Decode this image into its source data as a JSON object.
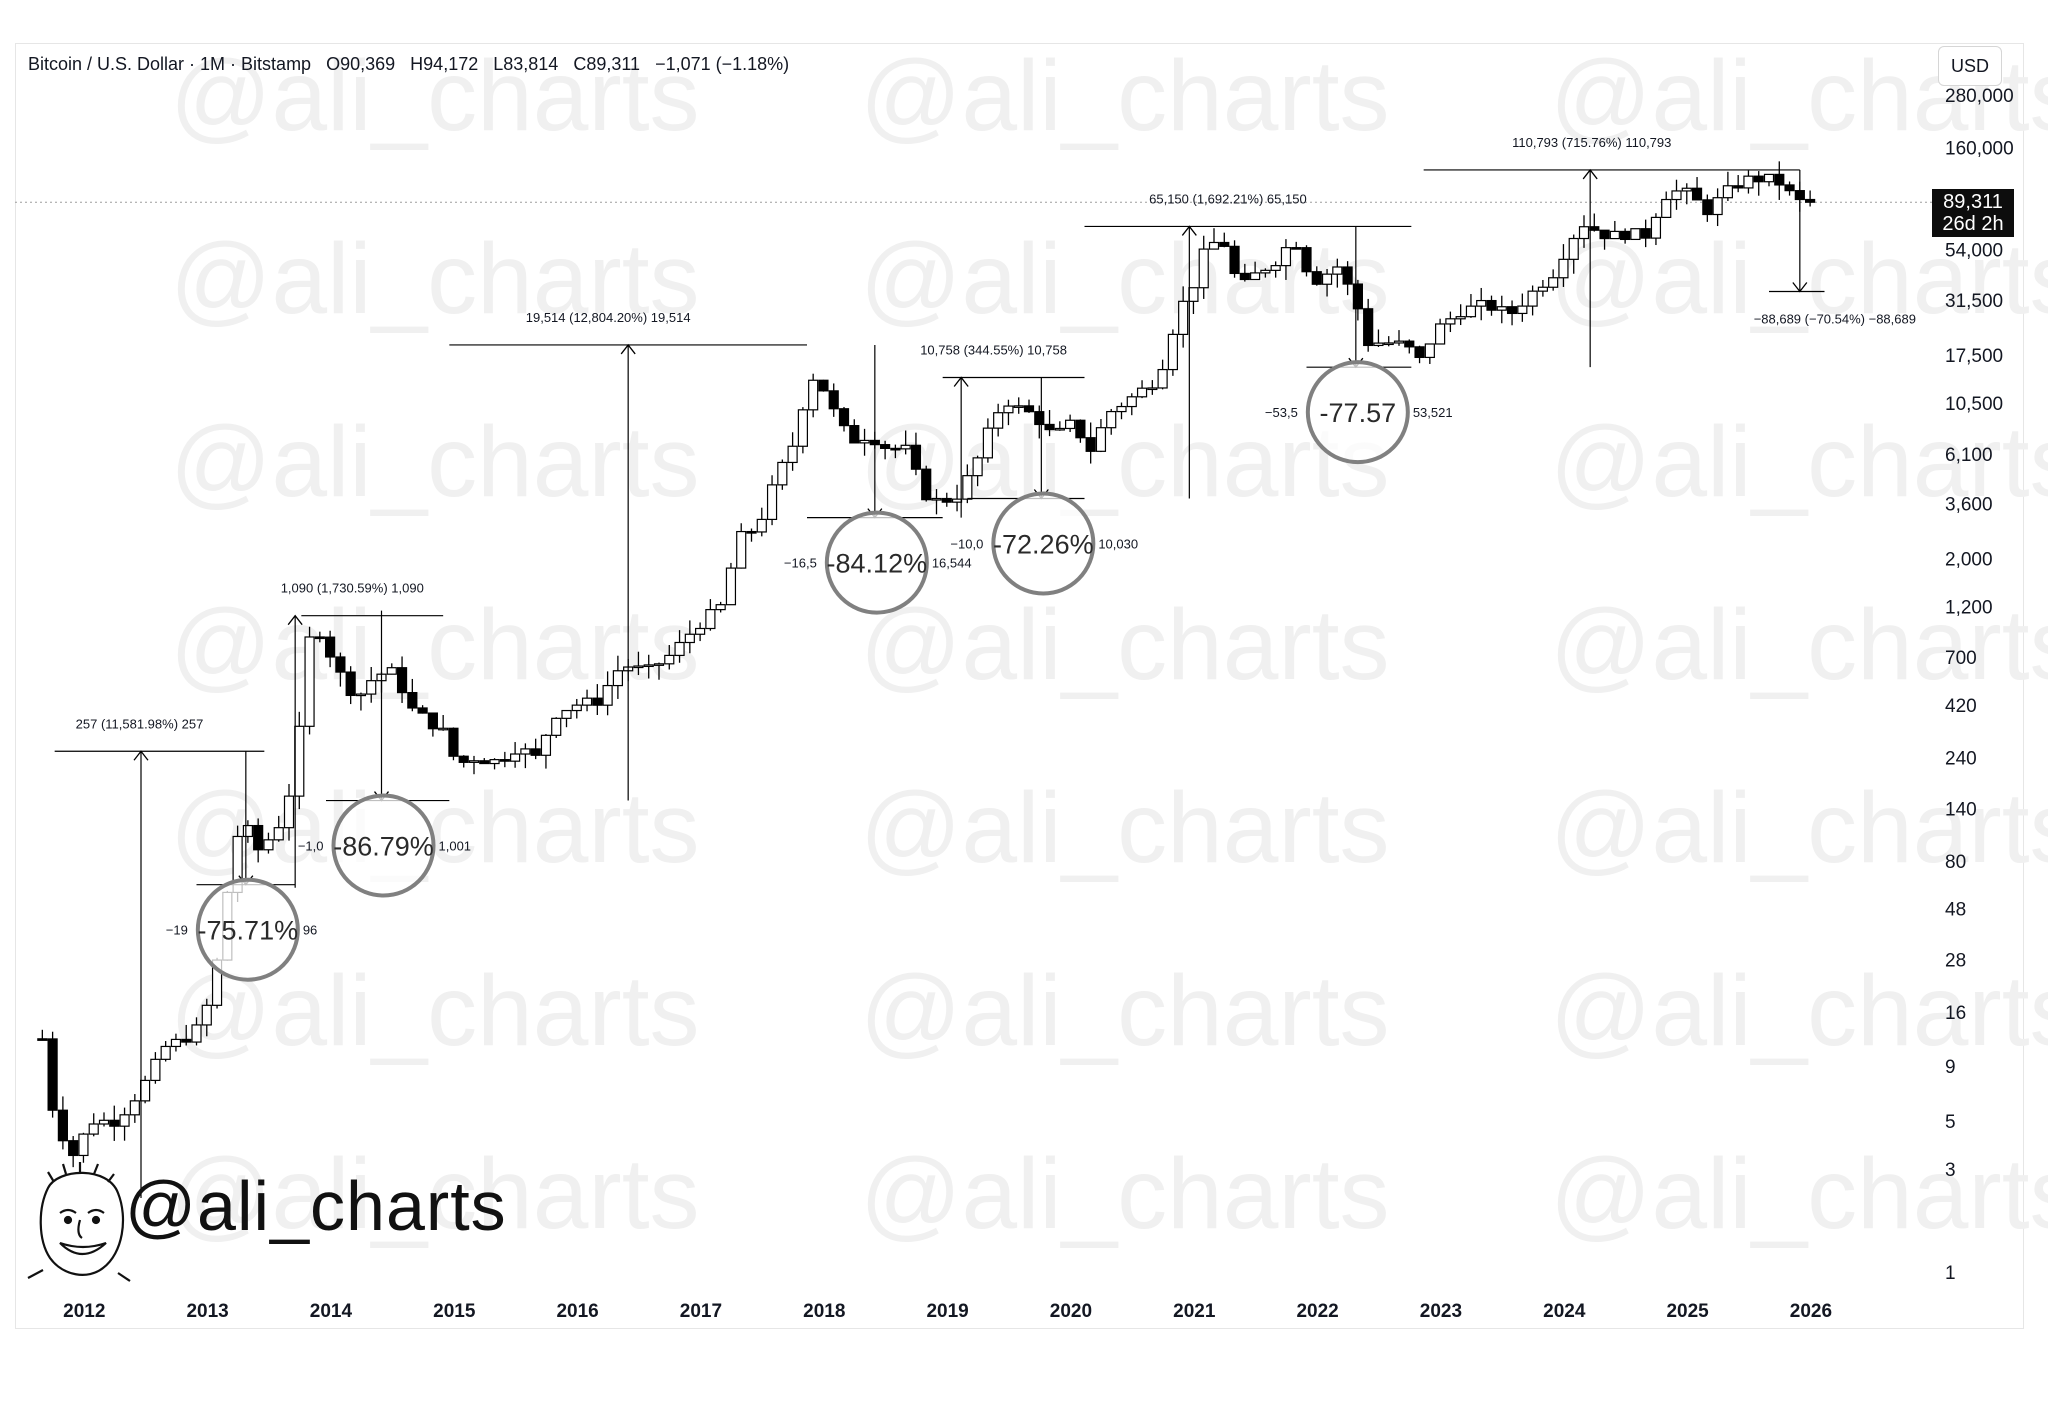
{
  "header": {
    "symbol": "Bitcoin / U.S. Dollar · 1M · Bitstamp",
    "open": "O90,369",
    "high": "H94,172",
    "low": "L83,814",
    "close": "C89,311",
    "change": "−1,071 (−1.18%)"
  },
  "currency": "USD",
  "price_badge": {
    "price": "89,311",
    "countdown": "26d 2h"
  },
  "watermark_text": "@ali_charts",
  "brand_text": "@ali_charts",
  "colors": {
    "up_candle": "#ffffff",
    "down_candle": "#000000",
    "wick": "#000000",
    "measure_line": "#000000",
    "circle": "#808080"
  },
  "chart_data": {
    "type": "candlestick",
    "y_scale": "log",
    "ylim": [
      1,
      280000
    ],
    "xlim": [
      2011.6,
      2026.6
    ],
    "y_tick_labels": [
      "280,000",
      "160,000",
      "54,000",
      "31,500",
      "17,500",
      "10,500",
      "6,100",
      "3,600",
      "2,000",
      "1,200",
      "700",
      "420",
      "240",
      "140",
      "80",
      "48",
      "28",
      "16",
      "9",
      "5",
      "3",
      "1"
    ],
    "x_tick_labels": [
      "2012",
      "2013",
      "2014",
      "2015",
      "2016",
      "2017",
      "2018",
      "2019",
      "2020",
      "2021",
      "2022",
      "2023",
      "2024",
      "2025",
      "2026"
    ],
    "current_price": 89311,
    "anchors": [
      {
        "t": 2011.7,
        "p": 12
      },
      {
        "t": 2011.8,
        "p": 5
      },
      {
        "t": 2011.95,
        "p": 3.5
      },
      {
        "t": 2012.1,
        "p": 5
      },
      {
        "t": 2012.3,
        "p": 5
      },
      {
        "t": 2012.5,
        "p": 7
      },
      {
        "t": 2012.7,
        "p": 11
      },
      {
        "t": 2012.85,
        "p": 12
      },
      {
        "t": 2013.0,
        "p": 14
      },
      {
        "t": 2013.15,
        "p": 33
      },
      {
        "t": 2013.25,
        "p": 100
      },
      {
        "t": 2013.35,
        "p": 115
      },
      {
        "t": 2013.45,
        "p": 90
      },
      {
        "t": 2013.6,
        "p": 110
      },
      {
        "t": 2013.75,
        "p": 200
      },
      {
        "t": 2013.85,
        "p": 800
      },
      {
        "t": 2013.92,
        "p": 1000
      },
      {
        "t": 2014.0,
        "p": 800
      },
      {
        "t": 2014.1,
        "p": 600
      },
      {
        "t": 2014.25,
        "p": 450
      },
      {
        "t": 2014.4,
        "p": 580
      },
      {
        "t": 2014.55,
        "p": 600
      },
      {
        "t": 2014.7,
        "p": 400
      },
      {
        "t": 2014.85,
        "p": 350
      },
      {
        "t": 2015.0,
        "p": 300
      },
      {
        "t": 2015.05,
        "p": 220
      },
      {
        "t": 2015.2,
        "p": 240
      },
      {
        "t": 2015.4,
        "p": 230
      },
      {
        "t": 2015.55,
        "p": 270
      },
      {
        "t": 2015.7,
        "p": 240
      },
      {
        "t": 2015.85,
        "p": 380
      },
      {
        "t": 2016.0,
        "p": 420
      },
      {
        "t": 2016.2,
        "p": 440
      },
      {
        "t": 2016.4,
        "p": 650
      },
      {
        "t": 2016.6,
        "p": 600
      },
      {
        "t": 2016.8,
        "p": 720
      },
      {
        "t": 2017.0,
        "p": 970
      },
      {
        "t": 2017.2,
        "p": 1200
      },
      {
        "t": 2017.35,
        "p": 2500
      },
      {
        "t": 2017.5,
        "p": 2800
      },
      {
        "t": 2017.65,
        "p": 4700
      },
      {
        "t": 2017.8,
        "p": 7000
      },
      {
        "t": 2017.92,
        "p": 14000
      },
      {
        "t": 2018.0,
        "p": 13500
      },
      {
        "t": 2018.1,
        "p": 10000
      },
      {
        "t": 2018.25,
        "p": 7000
      },
      {
        "t": 2018.4,
        "p": 7500
      },
      {
        "t": 2018.55,
        "p": 6500
      },
      {
        "t": 2018.7,
        "p": 6400
      },
      {
        "t": 2018.85,
        "p": 4000
      },
      {
        "t": 2018.95,
        "p": 3700
      },
      {
        "t": 2019.1,
        "p": 3800
      },
      {
        "t": 2019.25,
        "p": 5200
      },
      {
        "t": 2019.4,
        "p": 8500
      },
      {
        "t": 2019.5,
        "p": 11000
      },
      {
        "t": 2019.6,
        "p": 10000
      },
      {
        "t": 2019.75,
        "p": 9200
      },
      {
        "t": 2019.9,
        "p": 7300
      },
      {
        "t": 2020.05,
        "p": 8500
      },
      {
        "t": 2020.2,
        "p": 6400
      },
      {
        "t": 2020.35,
        "p": 9500
      },
      {
        "t": 2020.55,
        "p": 11300
      },
      {
        "t": 2020.75,
        "p": 13800
      },
      {
        "t": 2020.92,
        "p": 29000
      },
      {
        "t": 2021.0,
        "p": 33000
      },
      {
        "t": 2021.15,
        "p": 58000
      },
      {
        "t": 2021.3,
        "p": 57000
      },
      {
        "t": 2021.4,
        "p": 35000
      },
      {
        "t": 2021.55,
        "p": 42000
      },
      {
        "t": 2021.7,
        "p": 48000
      },
      {
        "t": 2021.85,
        "p": 61000
      },
      {
        "t": 2022.0,
        "p": 38000
      },
      {
        "t": 2022.2,
        "p": 45000
      },
      {
        "t": 2022.35,
        "p": 31000
      },
      {
        "t": 2022.45,
        "p": 20000
      },
      {
        "t": 2022.6,
        "p": 20000
      },
      {
        "t": 2022.75,
        "p": 19500
      },
      {
        "t": 2022.87,
        "p": 16500
      },
      {
        "t": 2023.0,
        "p": 23000
      },
      {
        "t": 2023.2,
        "p": 28000
      },
      {
        "t": 2023.4,
        "p": 30000
      },
      {
        "t": 2023.6,
        "p": 27000
      },
      {
        "t": 2023.8,
        "p": 35000
      },
      {
        "t": 2023.95,
        "p": 42000
      },
      {
        "t": 2024.1,
        "p": 61000
      },
      {
        "t": 2024.2,
        "p": 71000
      },
      {
        "t": 2024.4,
        "p": 62000
      },
      {
        "t": 2024.55,
        "p": 64000
      },
      {
        "t": 2024.7,
        "p": 63000
      },
      {
        "t": 2024.85,
        "p": 96000
      },
      {
        "t": 2025.0,
        "p": 102000
      },
      {
        "t": 2025.2,
        "p": 82000
      },
      {
        "t": 2025.4,
        "p": 105000
      },
      {
        "t": 2025.55,
        "p": 115000
      },
      {
        "t": 2025.7,
        "p": 114000
      },
      {
        "t": 2025.8,
        "p": 109000
      },
      {
        "t": 2025.92,
        "p": 90000
      },
      {
        "t": 2026.0,
        "p": 89311
      }
    ],
    "measurements": [
      {
        "label": "257 (11,581.98%) 257",
        "from_t": 2011.95,
        "from_p": 2.2,
        "to_p": 257,
        "arrow_t": 2012.5,
        "x0": 2011.8,
        "x1": 2013.5
      },
      {
        "label": "1,090 (1,730.59%) 1,090",
        "from_t": 2013.75,
        "from_p": 60,
        "to_p": 1090,
        "arrow_t": 2013.75,
        "x0": 2013.8,
        "x1": 2014.95
      },
      {
        "label": "19,514 (12,804.20%) 19,514",
        "from_t": 2015.0,
        "from_p": 152,
        "to_p": 19514,
        "arrow_t": 2016.45,
        "x0": 2015.0,
        "x1": 2017.9
      },
      {
        "label": "10,758 (344.55%) 10,758",
        "from_t": 2018.95,
        "from_p": 3100,
        "to_p": 13800,
        "arrow_t": 2019.15,
        "x0": 2019.0,
        "x1": 2020.15
      },
      {
        "label": "65,150 (1,692.21%) 65,150",
        "from_t": 2020.15,
        "from_p": 3800,
        "to_p": 69000,
        "arrow_t": 2021.0,
        "x0": 2020.15,
        "x1": 2022.8
      },
      {
        "label": "110,793 (715.76%) 110,793",
        "from_t": 2022.9,
        "from_p": 15400,
        "to_p": 126000,
        "arrow_t": 2024.25,
        "x0": 2022.9,
        "x1": 2025.95
      }
    ],
    "drawdowns": [
      {
        "label_left": "−19",
        "label_right": "96",
        "circle_text": "-75.71%",
        "top_p": 257,
        "bottom_p": 62,
        "arrow_t": 2013.35,
        "x0": 2012.95,
        "x1": 2013.75
      },
      {
        "label_left": "−1,0",
        "label_right": "1,001",
        "circle_text": "-86.79%",
        "top_p": 1150,
        "bottom_p": 152,
        "arrow_t": 2014.45,
        "x0": 2014.0,
        "x1": 2015.0
      },
      {
        "label_left": "−16,5",
        "label_right": "16,544",
        "circle_text": "-84.12%",
        "top_p": 19514,
        "bottom_p": 3100,
        "arrow_t": 2018.45,
        "x0": 2017.9,
        "x1": 2019.0
      },
      {
        "label_left": "−10,0",
        "label_right": "10,030",
        "circle_text": "-72.26%",
        "top_p": 13800,
        "bottom_p": 3800,
        "arrow_t": 2019.8,
        "x0": 2019.2,
        "x1": 2020.15
      },
      {
        "label_left": "−53,5",
        "label_right": "53,521",
        "circle_text": "-77.57",
        "top_p": 69000,
        "bottom_p": 15400,
        "arrow_t": 2022.35,
        "x0": 2021.95,
        "x1": 2022.8
      },
      {
        "label_left": "−88,689 (−70.54%) −88,689",
        "label_right": "",
        "circle_text": "",
        "top_p": 126000,
        "bottom_p": 34500,
        "arrow_t": 2025.95,
        "x0": 2025.7,
        "x1": 2026.15
      }
    ]
  }
}
